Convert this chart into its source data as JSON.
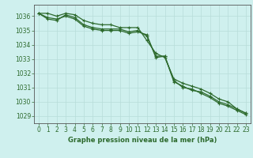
{
  "title": "Graphe pression niveau de la mer (hPa)",
  "background_color": "#cff0ee",
  "grid_color": "#b8ddd9",
  "line_color": "#2d6a2d",
  "axis_color": "#555555",
  "x_values": [
    0,
    1,
    2,
    3,
    4,
    5,
    6,
    7,
    8,
    9,
    10,
    11,
    12,
    13,
    14,
    15,
    16,
    17,
    18,
    19,
    20,
    21,
    22,
    23
  ],
  "series1": [
    1036.2,
    1036.2,
    1036.0,
    1036.2,
    1036.1,
    1035.7,
    1035.5,
    1035.4,
    1035.4,
    1035.2,
    1035.2,
    1035.2,
    1034.3,
    1033.4,
    1033.1,
    1031.6,
    1031.3,
    1031.1,
    1030.9,
    1030.6,
    1030.2,
    1030.0,
    1029.5,
    1029.2
  ],
  "series2": [
    1036.2,
    1035.8,
    1035.7,
    1036.1,
    1035.9,
    1035.4,
    1035.2,
    1035.1,
    1035.1,
    1035.1,
    1034.9,
    1035.0,
    1034.6,
    1033.2,
    1033.2,
    1031.4,
    1031.1,
    1030.8,
    1030.7,
    1030.4,
    1030.0,
    1029.8,
    1029.5,
    1029.2
  ],
  "series3": [
    1036.2,
    1035.9,
    1035.8,
    1036.0,
    1035.8,
    1035.3,
    1035.1,
    1035.0,
    1035.0,
    1035.0,
    1034.8,
    1034.9,
    1034.7,
    1033.1,
    1033.2,
    1031.5,
    1031.0,
    1030.9,
    1030.6,
    1030.3,
    1029.9,
    1029.7,
    1029.4,
    1029.1
  ],
  "ylim": [
    1028.5,
    1036.8
  ],
  "yticks": [
    1029,
    1030,
    1031,
    1032,
    1033,
    1034,
    1035,
    1036
  ],
  "xlim": [
    -0.5,
    23.5
  ],
  "marker": "+",
  "markersize": 3.5,
  "linewidth": 0.9,
  "tick_fontsize": 5.5,
  "title_fontsize": 6.0
}
